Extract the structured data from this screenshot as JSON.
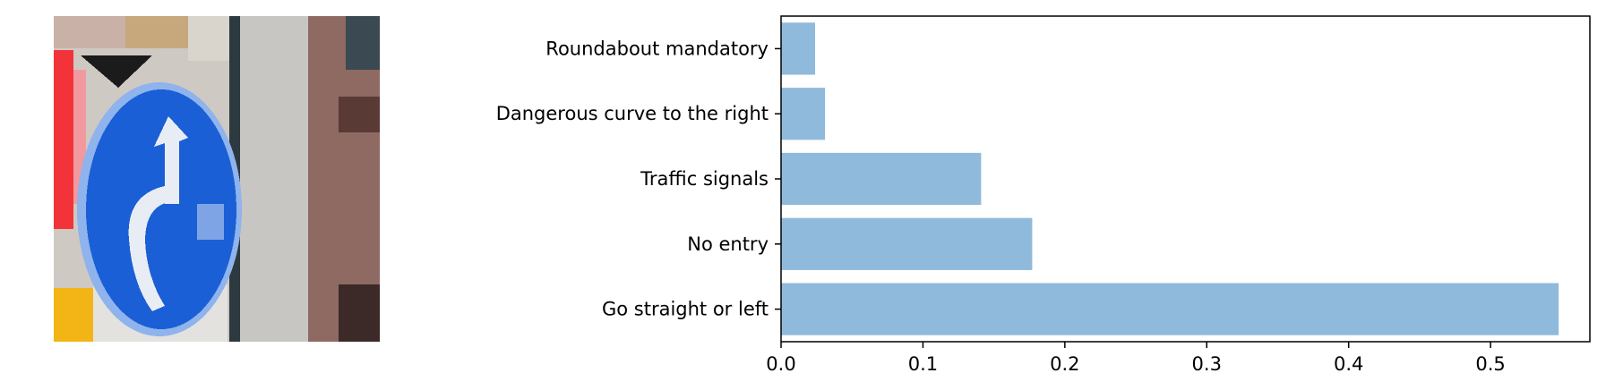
{
  "image_panel": {
    "subject": "Blue circular traffic sign (Go straight or left) on grey pole"
  },
  "colors": {
    "bar": "#8fbadb",
    "axis": "#000000",
    "sign_blue": "#1a5fd6",
    "sign_arrow": "#e8edf5"
  },
  "chart_data": {
    "type": "bar",
    "orientation": "horizontal",
    "categories": [
      "Go straight or left",
      "No entry",
      "Traffic signals",
      "Dangerous curve to the right",
      "Roundabout mandatory"
    ],
    "values": [
      0.548,
      0.177,
      0.141,
      0.031,
      0.024
    ],
    "xlim": [
      0,
      0.57
    ],
    "xticks": [
      "0.0",
      "0.1",
      "0.2",
      "0.3",
      "0.4",
      "0.5"
    ],
    "xtick_values": [
      0.0,
      0.1,
      0.2,
      0.3,
      0.4,
      0.5
    ],
    "title": "",
    "xlabel": "",
    "ylabel": "",
    "grid": false
  }
}
